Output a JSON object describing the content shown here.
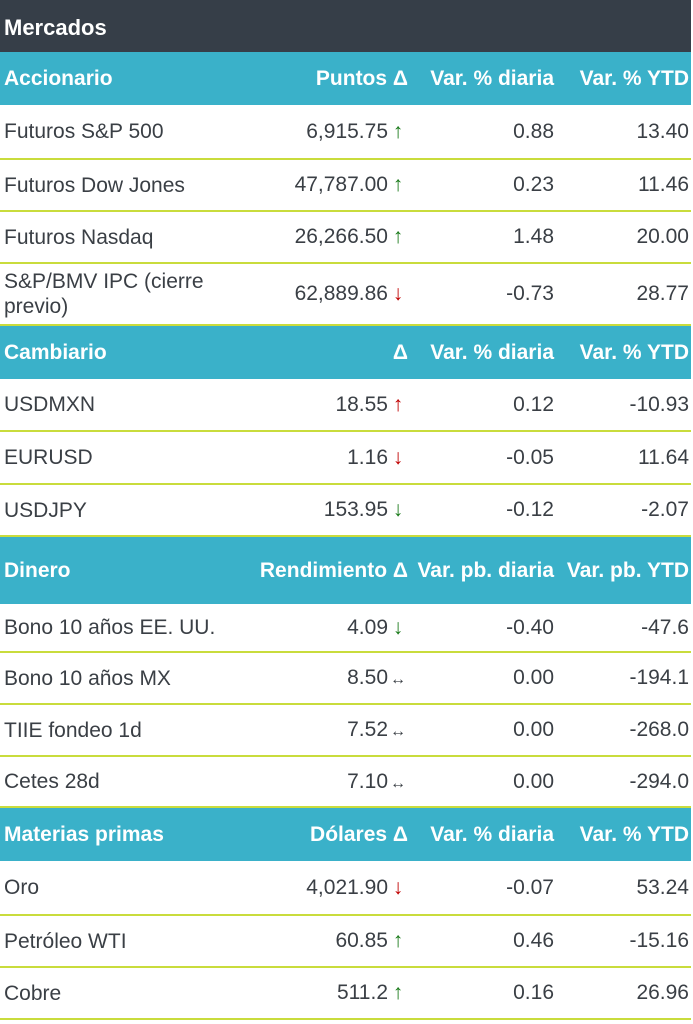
{
  "title": "Mercados",
  "colors": {
    "header": "#363e48",
    "section": "#3ab1c9",
    "divider": "#c9dc3c",
    "up_green": "#1a7a1a",
    "down_red": "#c00000"
  },
  "sections": [
    {
      "name": "Accionario",
      "cols": [
        "Puntos Δ",
        "Var. % diaria",
        "Var. % YTD"
      ],
      "rows": [
        {
          "name": "Futuros S&P 500",
          "value": "6,915.75",
          "arrow": "↑",
          "arrow_color": "green",
          "daily": "0.88",
          "ytd": "13.40"
        },
        {
          "name": "Futuros Dow Jones",
          "value": "47,787.00",
          "arrow": "↑",
          "arrow_color": "green",
          "daily": "0.23",
          "ytd": "11.46"
        },
        {
          "name": "Futuros Nasdaq",
          "value": "26,266.50",
          "arrow": "↑",
          "arrow_color": "green",
          "daily": "1.48",
          "ytd": "20.00"
        },
        {
          "name": "S&P/BMV IPC (cierre previo)",
          "value": "62,889.86",
          "arrow": "↓",
          "arrow_color": "red",
          "daily": "-0.73",
          "ytd": "28.77"
        }
      ]
    },
    {
      "name": "Cambiario",
      "cols": [
        "Δ",
        "Var. % diaria",
        "Var. % YTD"
      ],
      "rows": [
        {
          "name": "USDMXN",
          "value": "18.55",
          "arrow": "↑",
          "arrow_color": "red",
          "daily": "0.12",
          "ytd": "-10.93"
        },
        {
          "name": "EURUSD",
          "value": "1.16",
          "arrow": "↓",
          "arrow_color": "red",
          "daily": "-0.05",
          "ytd": "11.64"
        },
        {
          "name": "USDJPY",
          "value": "153.95",
          "arrow": "↓",
          "arrow_color": "green",
          "daily": "-0.12",
          "ytd": "-2.07"
        }
      ]
    },
    {
      "name": "Dinero",
      "cols": [
        "Rendimiento Δ",
        "Var. pb. diaria",
        "Var. pb. YTD"
      ],
      "rows": [
        {
          "name": "Bono 10 años EE. UU.",
          "value": "4.09",
          "arrow": "↓",
          "arrow_color": "green",
          "daily": "-0.40",
          "ytd": "-47.6"
        },
        {
          "name": "Bono 10 años MX",
          "value": "8.50",
          "arrow": "↔",
          "arrow_color": "neutral",
          "daily": "0.00",
          "ytd": "-194.1"
        },
        {
          "name": "TIIE fondeo 1d",
          "value": "7.52",
          "arrow": "↔",
          "arrow_color": "neutral",
          "daily": "0.00",
          "ytd": "-268.0"
        },
        {
          "name": "Cetes 28d",
          "value": "7.10",
          "arrow": "↔",
          "arrow_color": "neutral",
          "daily": "0.00",
          "ytd": "-294.0"
        }
      ]
    },
    {
      "name": "Materias primas",
      "cols": [
        "Dólares Δ",
        "Var. % diaria",
        "Var. % YTD"
      ],
      "rows": [
        {
          "name": "Oro",
          "value": "4,021.90",
          "arrow": "↓",
          "arrow_color": "red",
          "daily": "-0.07",
          "ytd": "53.24"
        },
        {
          "name": "Petróleo WTI",
          "value": "60.85",
          "arrow": "↑",
          "arrow_color": "green",
          "daily": "0.46",
          "ytd": "-15.16"
        },
        {
          "name": "Cobre",
          "value": "511.2",
          "arrow": "↑",
          "arrow_color": "green",
          "daily": "0.16",
          "ytd": "26.96"
        }
      ]
    }
  ]
}
